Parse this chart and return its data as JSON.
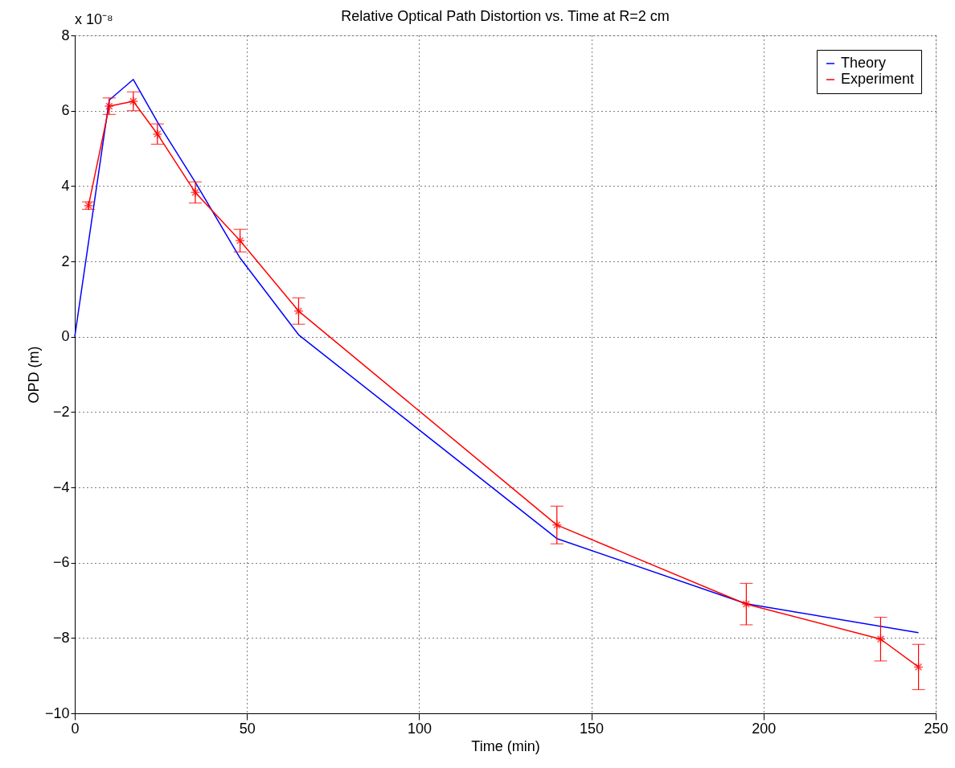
{
  "chart_data": {
    "type": "line",
    "title": "Relative Optical Path Distortion vs. Time at R=2 cm",
    "xlabel": "Time (min)",
    "ylabel": "OPD (m)",
    "annotations": [
      "x 10⁻⁸"
    ],
    "xlim": [
      0,
      250
    ],
    "xticks": [
      0,
      50,
      100,
      150,
      200,
      250
    ],
    "ylim": [
      -10,
      8
    ],
    "yticks": [
      -10,
      -8,
      -6,
      -4,
      -2,
      0,
      2,
      4,
      6,
      8
    ],
    "grid": true,
    "legend": "top right",
    "series": [
      {
        "name": "Theory",
        "color": "#0000ff",
        "marker": "none",
        "x": [
          0,
          10,
          17,
          24,
          35,
          48,
          65,
          140,
          195,
          245
        ],
        "values": [
          0,
          6.28,
          6.83,
          5.7,
          4.1,
          2.09,
          0.05,
          -5.36,
          -7.09,
          -7.86
        ]
      },
      {
        "name": "Experiment",
        "color": "#ff0000",
        "marker": "cross",
        "x": [
          4,
          10,
          17,
          24,
          35,
          48,
          65,
          140,
          195,
          234,
          245
        ],
        "values": [
          3.48,
          6.12,
          6.25,
          5.38,
          3.83,
          2.55,
          0.68,
          -5.0,
          -7.1,
          -8.03,
          -8.77
        ],
        "errors": [
          0.1,
          0.22,
          0.25,
          0.27,
          0.28,
          0.3,
          0.35,
          0.5,
          0.55,
          0.58,
          0.6
        ]
      }
    ]
  }
}
